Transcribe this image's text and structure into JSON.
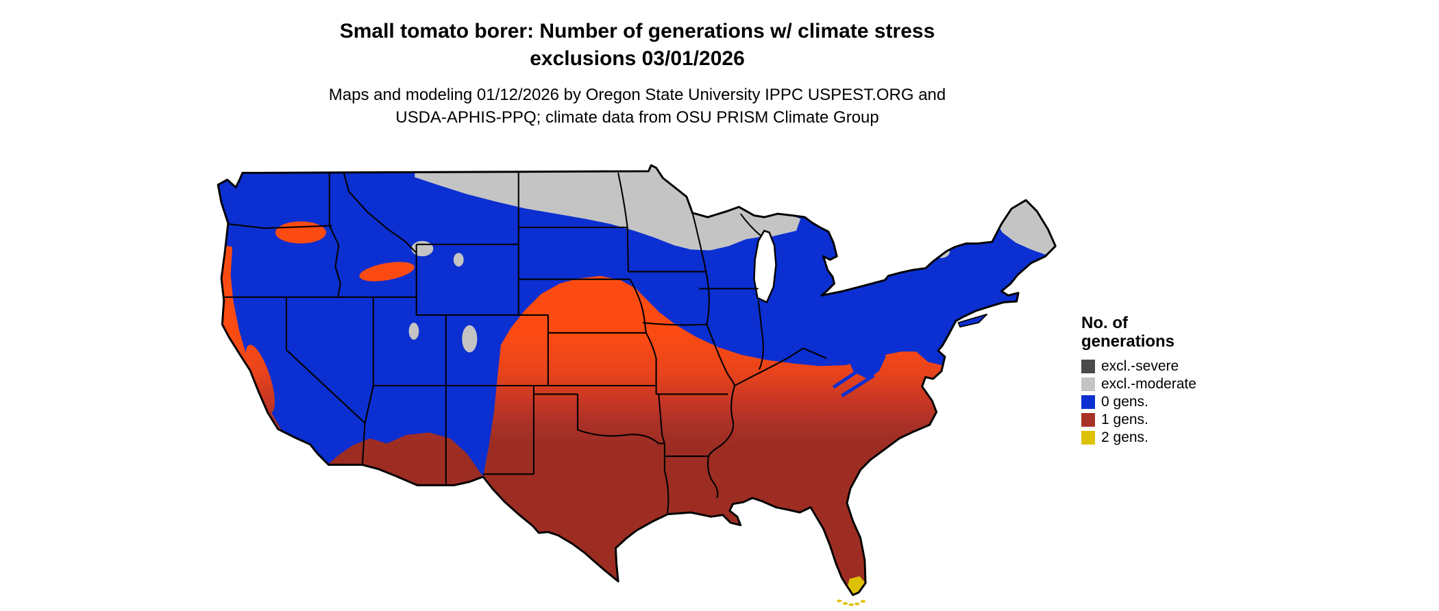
{
  "header": {
    "title_line1": "Small tomato borer: Number of generations w/ climate stress",
    "title_line2": "exclusions 03/01/2026",
    "subtitle_line1": "Maps and modeling 01/12/2026 by Oregon State University IPPC USPEST.ORG and",
    "subtitle_line2": "USDA-APHIS-PPQ; climate data from OSU PRISM Climate Group"
  },
  "legend": {
    "title_line1": "No. of",
    "title_line2": "generations",
    "items": [
      {
        "label": "excl.-severe",
        "color": "#4a4a4a"
      },
      {
        "label": "excl.-moderate",
        "color": "#c4c4c4"
      },
      {
        "label": "0 gens.",
        "color": "#0b2fd0"
      },
      {
        "label": "1 gens.",
        "color": "#a93228"
      },
      {
        "label": "2 gens.",
        "color": "#ddc107"
      }
    ]
  },
  "map": {
    "name": "continental-us-generations-map",
    "colors": {
      "gens0": "#0b2fd0",
      "gens1": "#a93228",
      "gens2": "#ddc107",
      "excl_moderate": "#c4c4c4",
      "excl_severe": "#4a4a4a",
      "band_orange": "#fc4b12",
      "outline": "#000000",
      "water": "#ffffff"
    },
    "gradient_stops": [
      "#fc4b12",
      "#e8431c",
      "#c73724",
      "#ab3127",
      "#9d2d23"
    ]
  }
}
